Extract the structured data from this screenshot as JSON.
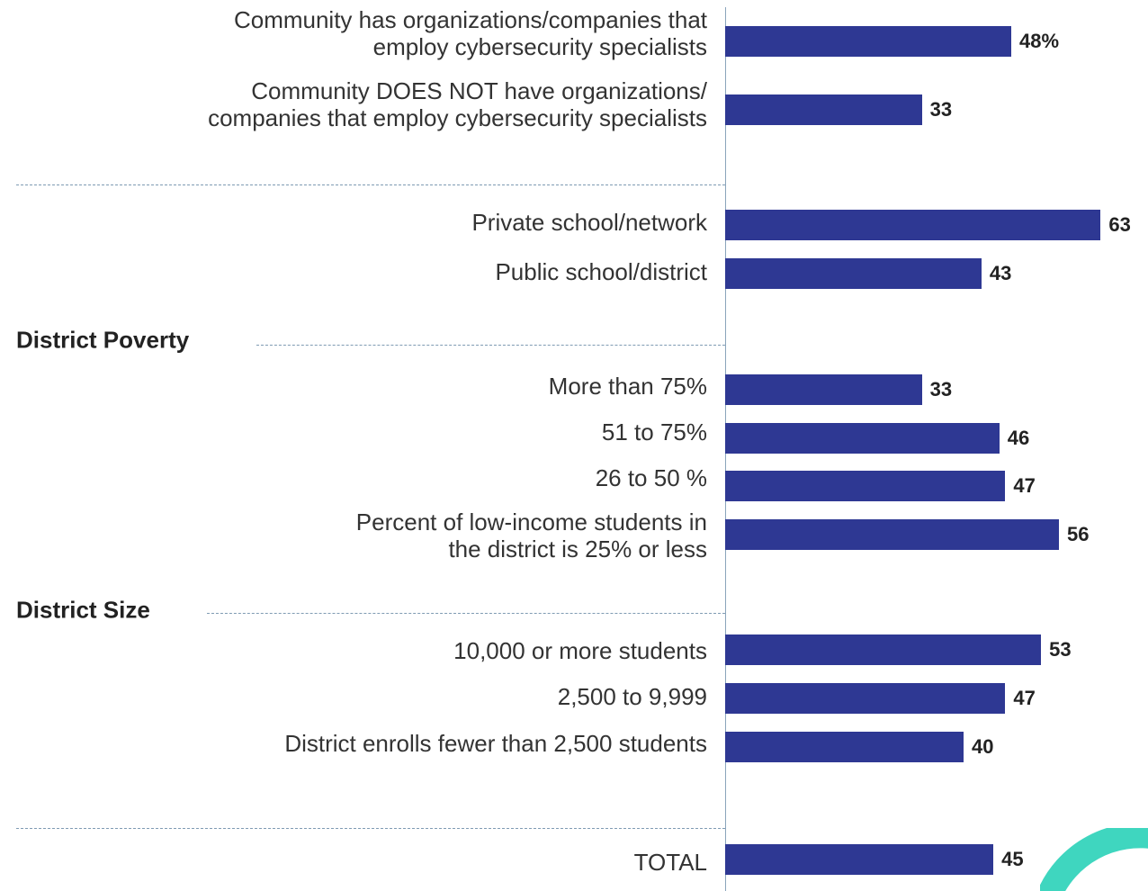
{
  "chart_data": {
    "type": "bar",
    "orientation": "horizontal",
    "categories": [
      "Community has organizations/companies that\nemploy cybersecurity specialists",
      "Community DOES NOT have organizations/\ncompanies that employ cybersecurity specialists",
      "Private school/network",
      "Public school/district",
      "More than 75%",
      "51 to 75%",
      "26 to 50 %",
      "Percent of low-income students in\nthe district is 25% or less",
      "10,000 or more students",
      "2,500 to 9,999",
      "District enrolls fewer than 2,500 students",
      "TOTAL"
    ],
    "values": [
      48,
      33,
      63,
      43,
      33,
      46,
      47,
      56,
      53,
      47,
      40,
      45
    ],
    "value_labels": [
      "48%",
      "33",
      "63",
      "43",
      "33",
      "46",
      "47",
      "56",
      "53",
      "47",
      "40",
      "45"
    ],
    "group_labels": [
      "District Poverty",
      "District Size"
    ],
    "color": "#2e3893",
    "xlim": [
      0,
      70
    ]
  }
}
